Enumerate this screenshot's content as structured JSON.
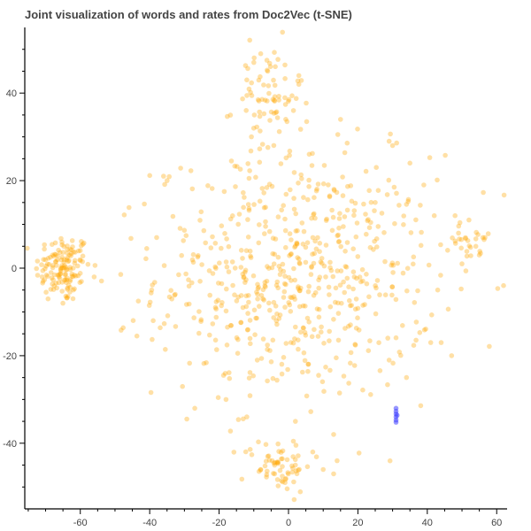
{
  "chart_data": {
    "type": "scatter",
    "title": "Joint visualization of words and rates from Doc2Vec (t-SNE)",
    "xlabel": "",
    "ylabel": "",
    "xlim": [
      -76,
      63
    ],
    "ylim": [
      -55,
      55
    ],
    "x_ticks": [
      -60,
      -40,
      -20,
      0,
      20,
      40,
      60
    ],
    "y_ticks": [
      -40,
      -20,
      0,
      20,
      40
    ],
    "grid": false,
    "legend": "none",
    "series": [
      {
        "color": "#ffa500",
        "opacity": 0.35,
        "description_clusters": [
          {
            "cx": -65,
            "cy": 0,
            "sx": 4,
            "sy": 4,
            "n": 140
          },
          {
            "cx": 2,
            "cy": -2,
            "sx": 20,
            "sy": 14,
            "n": 600
          },
          {
            "cx": -6,
            "cy": 38,
            "sx": 5,
            "sy": 7,
            "n": 80
          },
          {
            "cx": -3,
            "cy": -45,
            "sx": 5,
            "sy": 3,
            "n": 60
          },
          {
            "cx": 52,
            "cy": 7,
            "sx": 2.5,
            "sy": 3,
            "n": 25
          }
        ],
        "sample_points": [
          [
            -68,
            3
          ],
          [
            -62,
            -5
          ],
          [
            -71,
            -2
          ],
          [
            -60,
            4
          ],
          [
            -65,
            -8
          ],
          [
            -56,
            -2
          ],
          [
            -35,
            20
          ],
          [
            -36,
            21
          ],
          [
            -38,
            7
          ],
          [
            -39,
            -12
          ],
          [
            -8,
            49
          ],
          [
            -10,
            47
          ],
          [
            -6,
            45
          ],
          [
            -12,
            43
          ],
          [
            3,
            44
          ],
          [
            3,
            42
          ],
          [
            15,
            34
          ],
          [
            25,
            15
          ],
          [
            29,
            29
          ],
          [
            30,
            28
          ],
          [
            35,
            24
          ],
          [
            39,
            19
          ],
          [
            42,
            12
          ],
          [
            48,
            12
          ],
          [
            49,
            8
          ],
          [
            52,
            11
          ],
          [
            54,
            5
          ],
          [
            56,
            7
          ],
          [
            55,
            3
          ],
          [
            50,
            1
          ],
          [
            41,
            -17
          ],
          [
            44,
            -17
          ],
          [
            47,
            -20
          ],
          [
            43,
            -5
          ],
          [
            -27,
            -32
          ],
          [
            -18,
            -30
          ],
          [
            -12,
            -34
          ],
          [
            2,
            -35
          ],
          [
            13,
            -38
          ],
          [
            -8,
            -46
          ],
          [
            -6,
            -43
          ],
          [
            -4,
            -47
          ],
          [
            -1,
            -49
          ],
          [
            2,
            -45
          ],
          [
            7,
            -42
          ],
          [
            10,
            -46
          ],
          [
            13,
            -47
          ],
          [
            14,
            -44
          ],
          [
            29,
            -21
          ],
          [
            34,
            -25
          ]
        ]
      },
      {
        "color": "#4444ff",
        "opacity": 0.55,
        "points": [
          [
            31,
            -32
          ],
          [
            31,
            -32.7
          ],
          [
            31,
            -33.3
          ],
          [
            31,
            -34
          ],
          [
            31,
            -34.7
          ],
          [
            31,
            -35.2
          ],
          [
            31.3,
            -33.6
          ]
        ]
      }
    ]
  }
}
